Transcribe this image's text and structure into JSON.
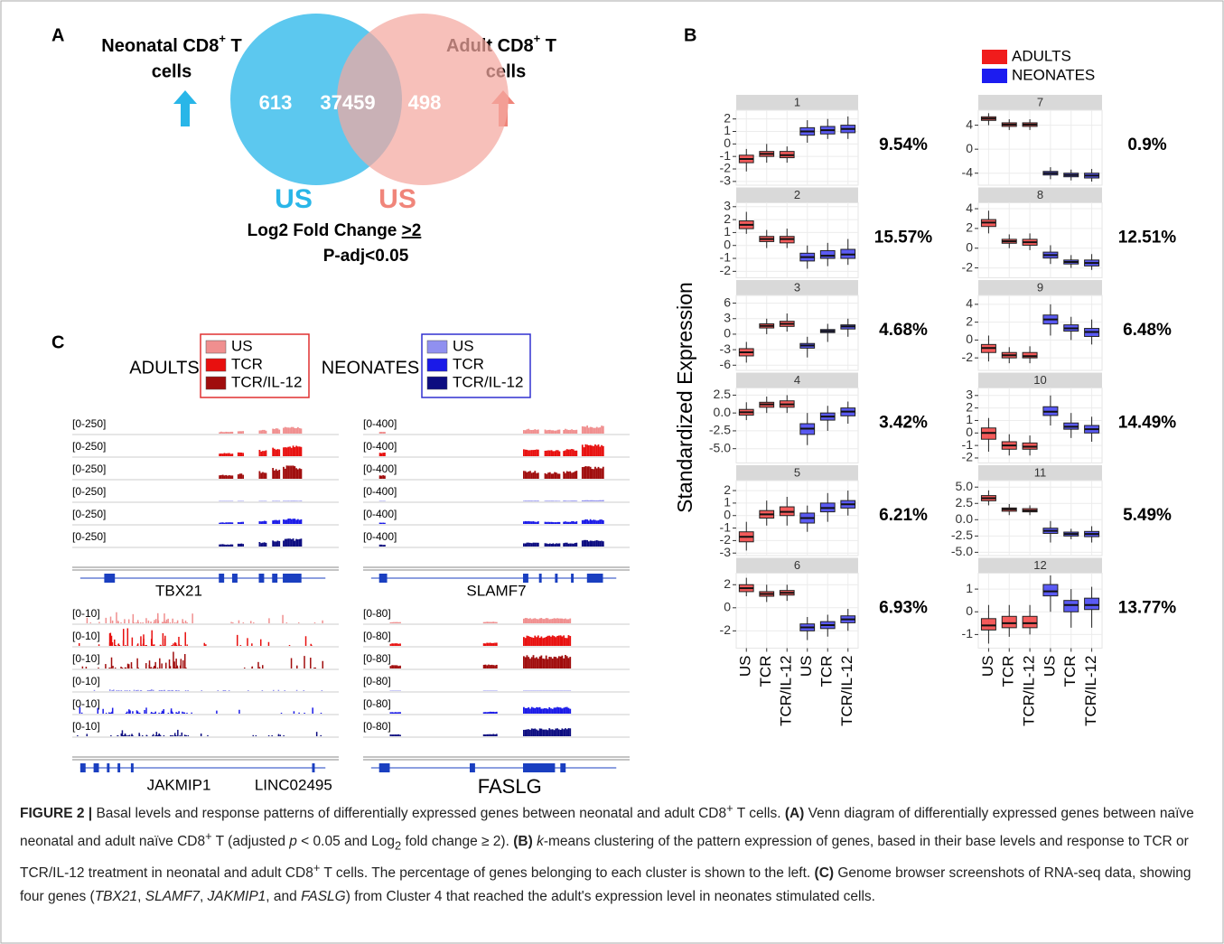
{
  "panel_a": {
    "letter": "A",
    "left_title": [
      "Neonatal CD8",
      "+",
      " T"
    ],
    "left_title_line2": "cells",
    "right_title": [
      "Adult CD8",
      "+",
      " T"
    ],
    "right_title_line2": "cells",
    "counts": {
      "left": 613,
      "both": 37459,
      "right": 498
    },
    "left_condition": "US",
    "right_condition": "US",
    "criteria": [
      "Log2 Fold Change ",
      ">2"
    ],
    "padj": "P-adj<0.05"
  },
  "panel_b": {
    "letter": "B"
  },
  "chart_data": {
    "type": "box",
    "y_label": "Standardized Expression",
    "categories": [
      "US",
      "TCR",
      "TCR/IL-12",
      "US",
      "TCR",
      "TCR/IL-12"
    ],
    "series": [
      {
        "name": "ADULTS",
        "color": "#f01c1c"
      },
      {
        "name": "NEONATES",
        "color": "#1c1cf0"
      }
    ],
    "facets": [
      {
        "title": "1",
        "ylim": [
          -3.3,
          2.7
        ],
        "yticks": [
          2,
          1,
          0,
          -1,
          -2,
          -3
        ],
        "percent": "9.54%",
        "boxes": [
          [
            [
              -2.2,
              -1.5,
              -1.2,
              -0.9,
              -0.4
            ],
            [
              -1.5,
              -1.0,
              -0.8,
              -0.6,
              0
            ],
            [
              -1.5,
              -1.1,
              -0.9,
              -0.6,
              -0.2
            ]
          ],
          [
            [
              0.1,
              0.7,
              1.0,
              1.3,
              1.9
            ],
            [
              0.4,
              0.8,
              1.1,
              1.4,
              2
            ],
            [
              0.4,
              0.9,
              1.2,
              1.5,
              2.2
            ]
          ]
        ]
      },
      {
        "title": "2",
        "ylim": [
          -2.5,
          3.3
        ],
        "yticks": [
          3,
          2,
          1,
          0,
          -1,
          -2
        ],
        "percent": "15.57%",
        "boxes": [
          [
            [
              0.9,
              1.3,
              1.6,
              1.9,
              2.6
            ],
            [
              -0.2,
              0.3,
              0.5,
              0.7,
              1.2
            ],
            [
              -0.2,
              0.2,
              0.5,
              0.7,
              1.3
            ]
          ],
          [
            [
              -1.8,
              -1.2,
              -0.9,
              -0.6,
              0
            ],
            [
              -1.6,
              -1.0,
              -0.8,
              -0.4,
              0.2
            ],
            [
              -1.5,
              -1.0,
              -0.7,
              -0.3,
              0.5
            ]
          ]
        ]
      },
      {
        "title": "3",
        "ylim": [
          -7,
          7.5
        ],
        "yticks": [
          6,
          3,
          0,
          -3,
          -6
        ],
        "percent": "4.68%",
        "boxes": [
          [
            [
              -5.5,
              -4.2,
              -3.5,
              -2.8,
              -1.5
            ],
            [
              0,
              1.2,
              1.6,
              2,
              3
            ],
            [
              0.5,
              1.5,
              2,
              2.5,
              4
            ]
          ],
          [
            [
              -4.5,
              -2.7,
              -2.2,
              -1.8,
              -0.5
            ],
            [
              -1.5,
              0.3,
              0.6,
              0.9,
              2
            ],
            [
              -0.5,
              1,
              1.5,
              1.8,
              3
            ]
          ]
        ]
      },
      {
        "title": "4",
        "ylim": [
          -7,
          3.5
        ],
        "yticks": [
          2.5,
          {
            "value": 0,
            "label": "0.0"
          },
          -2.5,
          {
            "value": -5,
            "label": "-5.0"
          }
        ],
        "percent": "3.42%",
        "boxes": [
          [
            [
              -1,
              -0.3,
              0.1,
              0.5,
              1.5
            ],
            [
              0,
              0.8,
              1.2,
              1.5,
              2.3
            ],
            [
              0,
              0.8,
              1.2,
              1.7,
              2.5
            ]
          ],
          [
            [
              -4.5,
              -3,
              -2.2,
              -1.5,
              0
            ],
            [
              -2.5,
              -1,
              -0.5,
              0,
              1
            ],
            [
              -1.5,
              -0.4,
              0.2,
              0.7,
              1.6
            ]
          ]
        ]
      },
      {
        "title": "5",
        "ylim": [
          -3.2,
          2.8
        ],
        "yticks": [
          2,
          1,
          0,
          -1,
          -2,
          -3
        ],
        "percent": "6.21%",
        "boxes": [
          [
            [
              -2.8,
              -2.1,
              -1.7,
              -1.3,
              -0.5
            ],
            [
              -0.8,
              -0.2,
              0.1,
              0.4,
              1.2
            ],
            [
              -0.8,
              0,
              0.3,
              0.7,
              1.5
            ]
          ],
          [
            [
              -1.3,
              -0.6,
              -0.2,
              0.2,
              0.8
            ],
            [
              -0.5,
              0.3,
              0.6,
              1,
              1.8
            ],
            [
              0,
              0.6,
              0.9,
              1.2,
              2
            ]
          ]
        ]
      },
      {
        "title": "6",
        "ylim": [
          -3.5,
          3
        ],
        "yticks": [
          2,
          0,
          -2
        ],
        "percent": "6.93%",
        "boxes": [
          [
            [
              1,
              1.4,
              1.7,
              2,
              2.6
            ],
            [
              0.5,
              1,
              1.2,
              1.4,
              2
            ],
            [
              0.6,
              1.1,
              1.3,
              1.5,
              2
            ]
          ],
          [
            [
              -2.8,
              -2,
              -1.7,
              -1.4,
              -0.8
            ],
            [
              -2.5,
              -1.8,
              -1.5,
              -1.2,
              -0.6
            ],
            [
              -2,
              -1.3,
              -1,
              -0.7,
              -0.1
            ]
          ]
        ]
      },
      {
        "title": "7",
        "ylim": [
          -6,
          6.5
        ],
        "yticks": [
          4,
          0,
          -4
        ],
        "percent": "0.9%",
        "boxes": [
          [
            [
              4,
              4.8,
              5.1,
              5.4,
              6
            ],
            [
              3.2,
              3.8,
              4.1,
              4.4,
              5
            ],
            [
              3.2,
              3.8,
              4.1,
              4.4,
              5
            ]
          ],
          [
            [
              -5,
              -4.3,
              -4,
              -3.7,
              -3
            ],
            [
              -5.2,
              -4.6,
              -4.3,
              -4,
              -3.4
            ],
            [
              -5.4,
              -4.8,
              -4.4,
              -4,
              -3.3
            ]
          ]
        ]
      },
      {
        "title": "8",
        "ylim": [
          -3,
          4.6
        ],
        "yticks": [
          4,
          2,
          0,
          -2
        ],
        "percent": "12.51%",
        "boxes": [
          [
            [
              1.5,
              2.2,
              2.6,
              2.9,
              3.8
            ],
            [
              0,
              0.5,
              0.7,
              0.9,
              1.4
            ],
            [
              -0.2,
              0.3,
              0.6,
              0.9,
              1.5
            ]
          ],
          [
            [
              -1.6,
              -1,
              -0.7,
              -0.4,
              0.3
            ],
            [
              -2,
              -1.6,
              -1.4,
              -1.2,
              -0.7
            ],
            [
              -2.2,
              -1.8,
              -1.5,
              -1.2,
              -0.6
            ]
          ]
        ]
      },
      {
        "title": "9",
        "ylim": [
          -3.4,
          5
        ],
        "yticks": [
          4,
          2,
          0,
          -2
        ],
        "percent": "6.48%",
        "boxes": [
          [
            [
              -2.4,
              -1.4,
              -0.9,
              -0.5,
              0.5
            ],
            [
              -2.6,
              -2,
              -1.7,
              -1.4,
              -0.8
            ],
            [
              -2.6,
              -2,
              -1.8,
              -1.4,
              -0.7
            ]
          ],
          [
            [
              0.5,
              1.8,
              2.3,
              2.8,
              4
            ],
            [
              0,
              1,
              1.3,
              1.7,
              2.6
            ],
            [
              -0.5,
              0.4,
              0.9,
              1.3,
              2.3
            ]
          ]
        ]
      },
      {
        "title": "10",
        "ylim": [
          -2.4,
          3.6
        ],
        "yticks": [
          3,
          2,
          1,
          0,
          -1,
          -2
        ],
        "percent": "14.49%",
        "boxes": [
          [
            [
              -1.5,
              -0.5,
              0,
              0.4,
              1.2
            ],
            [
              -1.8,
              -1.3,
              -1,
              -0.7,
              -0.1
            ],
            [
              -1.8,
              -1.3,
              -1.1,
              -0.8,
              -0.2
            ]
          ],
          [
            [
              0.6,
              1.4,
              1.7,
              2.1,
              3
            ],
            [
              -0.4,
              0.3,
              0.5,
              0.8,
              1.6
            ],
            [
              -0.7,
              0,
              0.3,
              0.6,
              1.3
            ]
          ]
        ]
      },
      {
        "title": "11",
        "ylim": [
          -5.5,
          6
        ],
        "yticks": [
          {
            "value": 5,
            "label": "5.0"
          },
          2.5,
          {
            "value": 0,
            "label": "0.0"
          },
          -2.5,
          {
            "value": -5,
            "label": "-5.0"
          }
        ],
        "percent": "5.49%",
        "boxes": [
          [
            [
              2.2,
              2.9,
              3.3,
              3.7,
              4.5
            ],
            [
              0.7,
              1.3,
              1.6,
              1.8,
              2.4
            ],
            [
              0.7,
              1.2,
              1.4,
              1.7,
              2.2
            ]
          ],
          [
            [
              -3.5,
              -2.1,
              -1.7,
              -1.3,
              -0.2
            ],
            [
              -3,
              -2.5,
              -2.2,
              -1.9,
              -1.4
            ],
            [
              -3.5,
              -2.6,
              -2.2,
              -1.8,
              -1
            ]
          ]
        ]
      },
      {
        "title": "12",
        "ylim": [
          -1.6,
          1.7
        ],
        "yticks": [
          1,
          0,
          -1
        ],
        "percent": "13.77%",
        "boxes": [
          [
            [
              -1.4,
              -0.8,
              -0.6,
              -0.3,
              0.3
            ],
            [
              -1.1,
              -0.7,
              -0.5,
              -0.2,
              0.3
            ],
            [
              -1,
              -0.7,
              -0.5,
              -0.2,
              0.3
            ]
          ],
          [
            [
              0,
              0.7,
              0.9,
              1.2,
              1.6
            ],
            [
              -0.7,
              0,
              0.3,
              0.5,
              1
            ],
            [
              -0.7,
              0.1,
              0.3,
              0.6,
              1.1
            ]
          ]
        ]
      }
    ]
  },
  "panel_c": {
    "letter": "C",
    "adults": {
      "label": "ADULTS",
      "entries": [
        "US",
        "TCR",
        "TCR/IL-12"
      ],
      "colors": [
        "#f08f8f",
        "#e8100f",
        "#a00d0d"
      ],
      "frame": "#e03030"
    },
    "neonates": {
      "label": "NEONATES",
      "entries": [
        "US",
        "TCR",
        "TCR/IL-12"
      ],
      "colors": [
        "#9090f0",
        "#1a1ae8",
        "#0c0c80"
      ],
      "frame": "#3030d0"
    },
    "genes": [
      {
        "ranges": [
          "[0-250]",
          "[0-250]",
          "[0-250]",
          "[0-250]",
          "[0-250]",
          "[0-250]"
        ],
        "names": [
          "TBX21"
        ]
      },
      {
        "ranges": [
          "[0-400]",
          "[0-400]",
          "[0-400]",
          "[0-400]",
          "[0-400]",
          "[0-400]"
        ],
        "names": [
          "SLAMF7"
        ]
      },
      {
        "ranges": [
          "[0-10]",
          "[0-10]",
          "[0-10]",
          "[0-10]",
          "[0-10]",
          "[0-10]"
        ],
        "names": [
          "JAKMIP1",
          "LINC02495"
        ]
      },
      {
        "ranges": [
          "[0-80]",
          "[0-80]",
          "[0-80]",
          "[0-80]",
          "[0-80]",
          "[0-80]"
        ],
        "names": [
          "FASLG"
        ]
      }
    ]
  },
  "caption": [
    "FIGURE 2 |",
    " Basal levels and response patterns of differentially expressed genes between neonatal and adult CD8",
    "+",
    " T cells. ",
    "(A)",
    " Venn diagram of differentially expressed genes between naïve neonatal and adult naïve CD8",
    "+",
    " T (adjusted ",
    "p",
    " < 0.05 and Log",
    "2",
    " fold change ≥ 2). ",
    "(B)",
    " ",
    "k",
    "-means clustering of the pattern expression of genes, based in their base levels and response to TCR or TCR/IL-12 treatment in neonatal and adult CD8",
    "+",
    " T cells. The percentage of genes belonging to each cluster is shown to the left. ",
    "(C)",
    " Genome browser screenshots of RNA-seq data, showing four genes (",
    "TBX21",
    ", ",
    "SLAMF7",
    ", ",
    "JAKMIP1",
    ", and ",
    "FASLG",
    ") from Cluster 4 that reached the adult's expression level in neonates stimulated cells."
  ]
}
